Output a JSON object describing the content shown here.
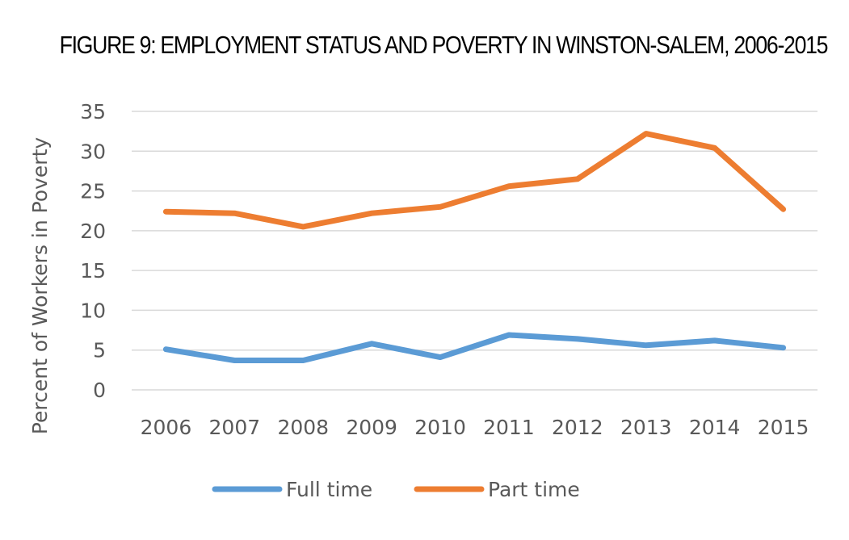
{
  "chart_data": {
    "type": "line",
    "title": "FIGURE 9: EMPLOYMENT STATUS AND POVERTY IN WINSTON-SALEM, 2006-2015",
    "xlabel": "",
    "ylabel": "Percent of Workers in Poverty",
    "ylim": [
      0,
      35
    ],
    "yticks": [
      0,
      5,
      10,
      15,
      20,
      25,
      30,
      35
    ],
    "categories": [
      "2006",
      "2007",
      "2008",
      "2009",
      "2010",
      "2011",
      "2012",
      "2013",
      "2014",
      "2015"
    ],
    "grid": true,
    "legend": "bottom",
    "series": [
      {
        "name": "Full time",
        "color": "#5B9BD5",
        "values": [
          5.1,
          3.7,
          3.7,
          5.8,
          4.1,
          6.9,
          6.4,
          5.6,
          6.2,
          5.3
        ]
      },
      {
        "name": "Part time",
        "color": "#ED7D31",
        "values": [
          22.4,
          22.2,
          20.5,
          22.2,
          23.0,
          25.6,
          26.5,
          32.2,
          30.4,
          22.7
        ]
      }
    ]
  }
}
